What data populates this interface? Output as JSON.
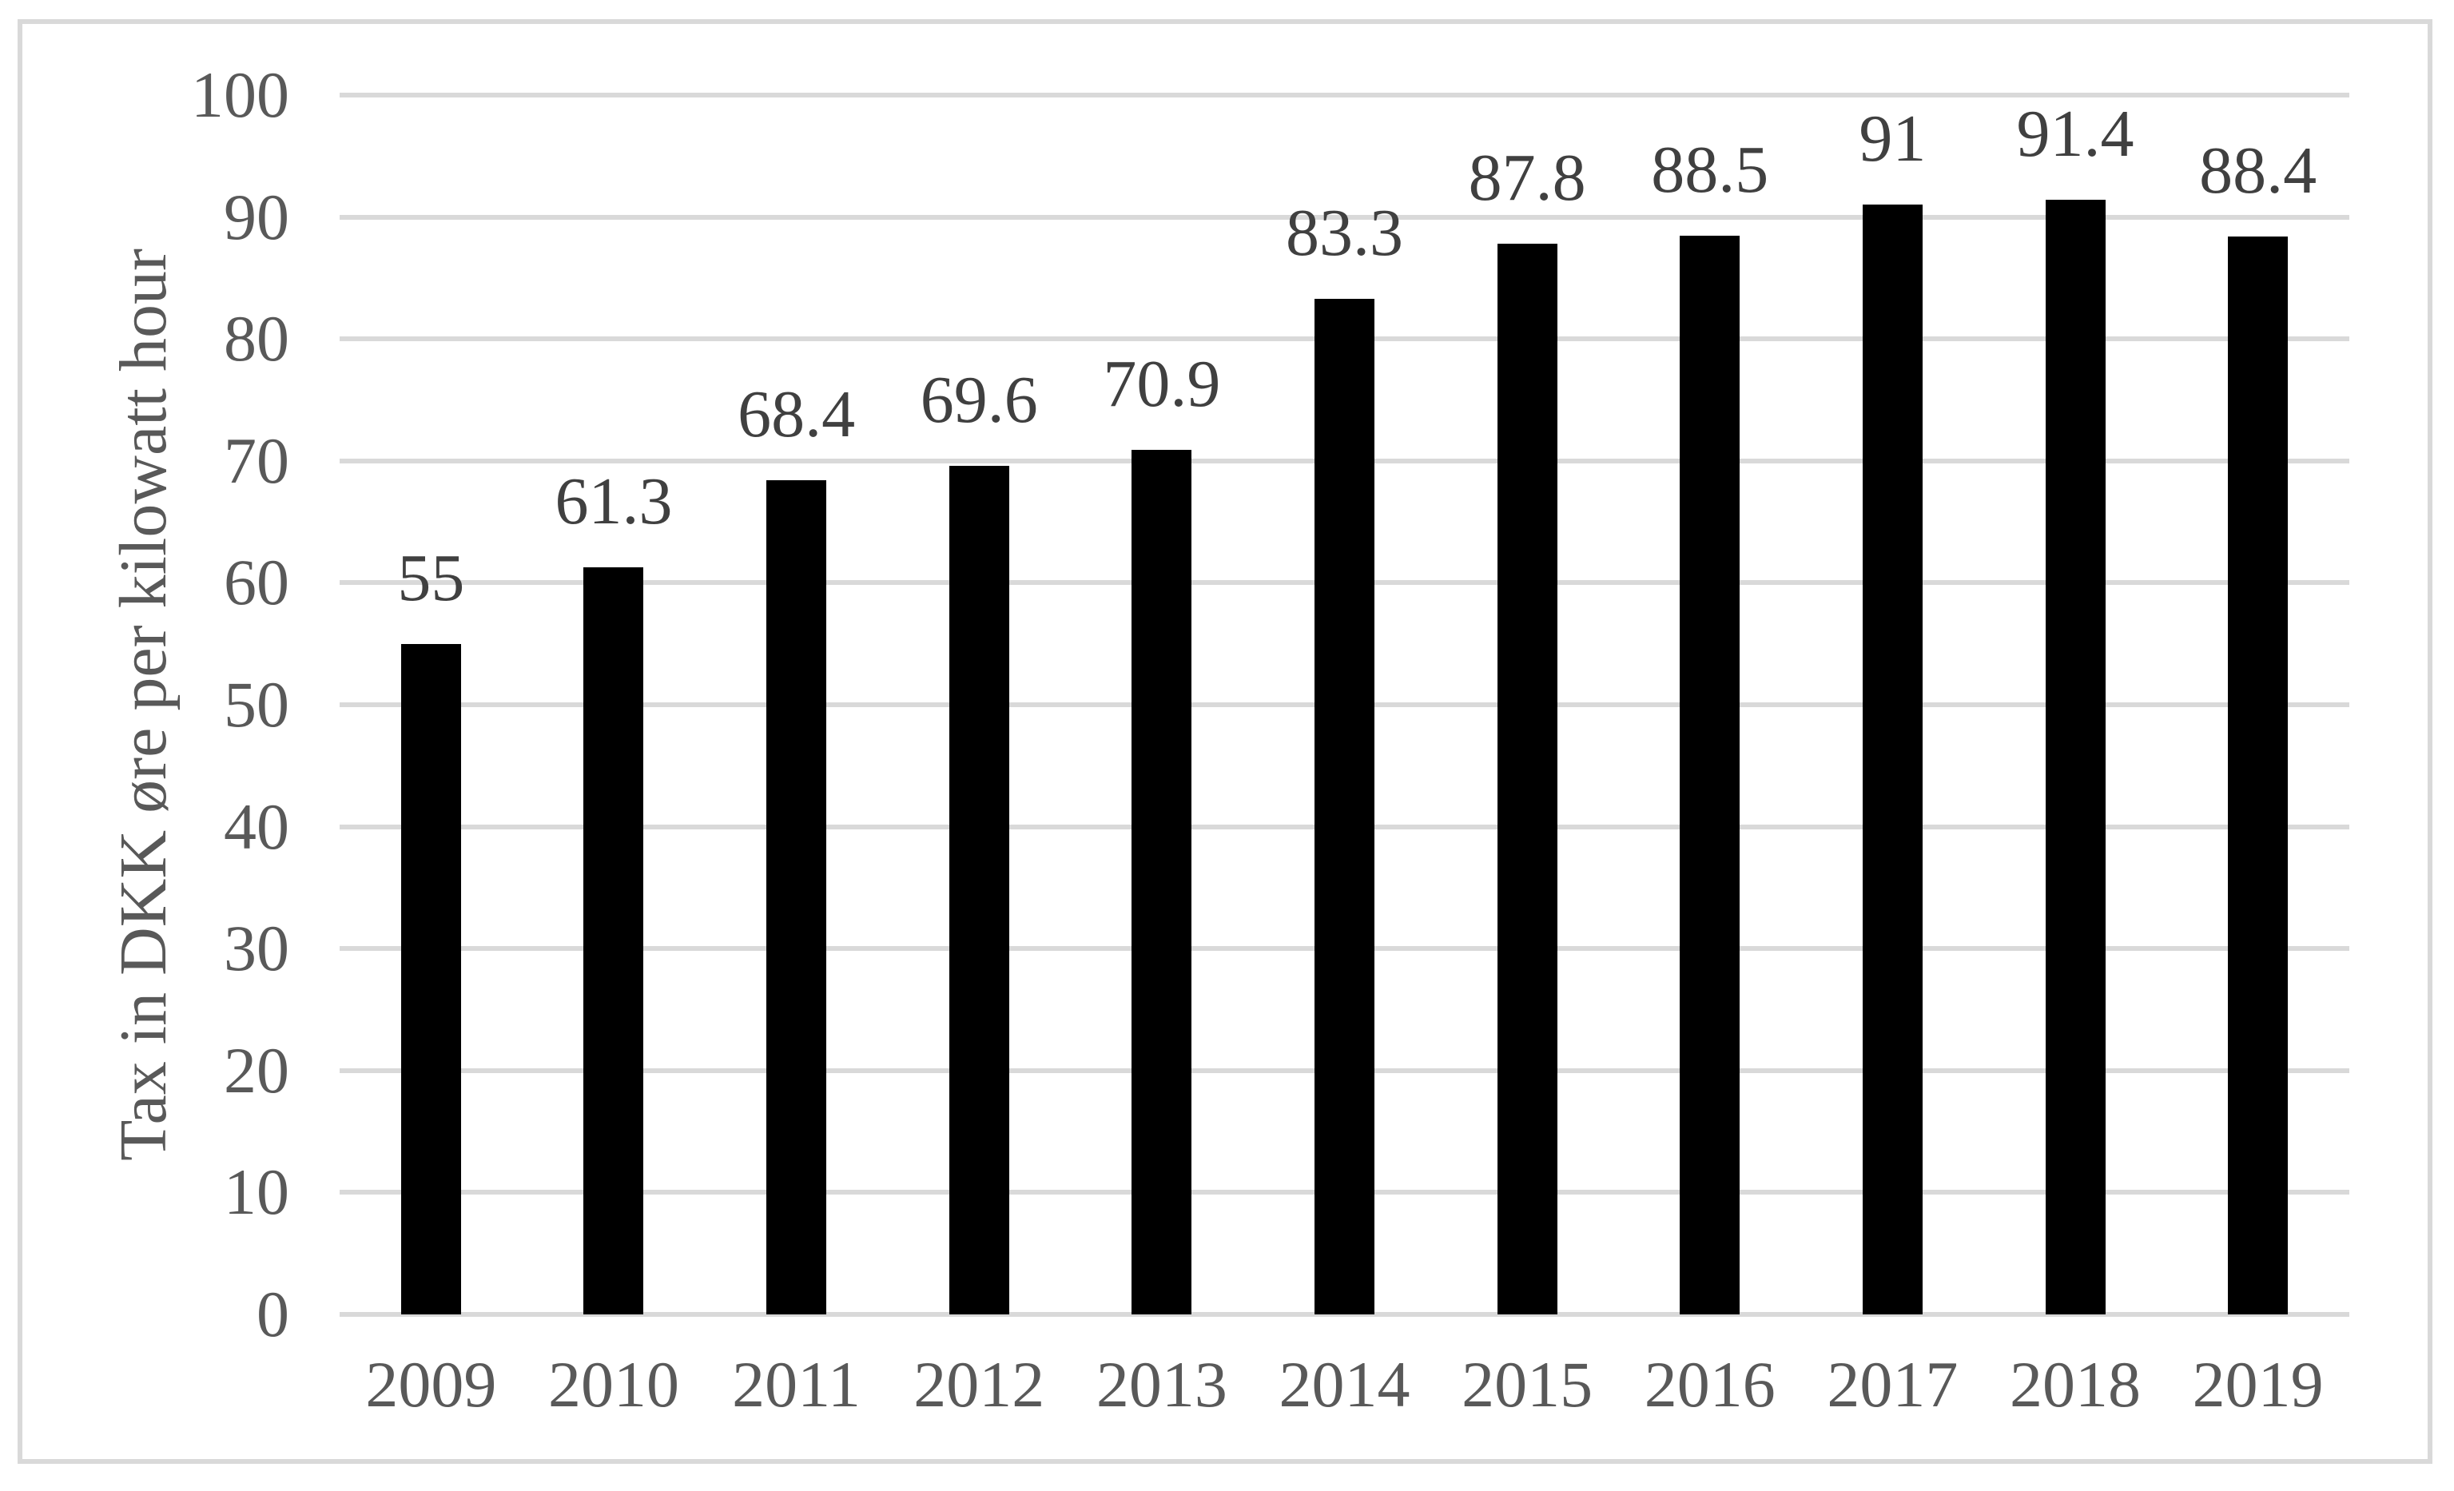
{
  "chart_data": {
    "type": "bar",
    "title": "",
    "categories": [
      "2009",
      "2010",
      "2011",
      "2012",
      "2013",
      "2014",
      "2015",
      "2016",
      "2017",
      "2018",
      "2019"
    ],
    "values": [
      55,
      61.3,
      68.4,
      69.6,
      70.9,
      83.3,
      87.8,
      88.5,
      91,
      91.4,
      88.4
    ],
    "data_labels": [
      "55",
      "61.3",
      "68.4",
      "69.6",
      "70.9",
      "83.3",
      "87.8",
      "88.5",
      "91",
      "91.4",
      "88.4"
    ],
    "xlabel": "",
    "ylabel": "Tax in DKK øre per kilowatt hour",
    "ylim": [
      0,
      100
    ],
    "yticks": [
      0,
      10,
      20,
      30,
      40,
      50,
      60,
      70,
      80,
      90,
      100
    ],
    "grid": "horizontal",
    "legend": "none",
    "data_labels_position": "above-bars",
    "colors": {
      "bar": "#000000",
      "gridline": "#d9d9d9",
      "axis_line": "#d9d9d9",
      "axis_tick_label": "#595959",
      "data_label": "#404040",
      "frame_border": "#d9d9d9",
      "background": "#ffffff"
    }
  }
}
